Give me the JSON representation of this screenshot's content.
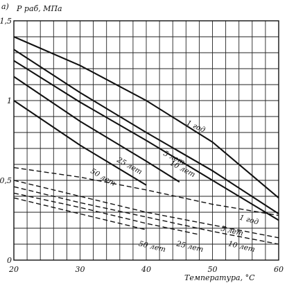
{
  "panel_label": "а)",
  "chart_data": {
    "type": "line",
    "ylabel": "P раб, МПа",
    "xlabel": "Температура, °C",
    "xlim": [
      20,
      60
    ],
    "ylim": [
      0,
      1.5
    ],
    "x_ticks": [
      20,
      30,
      40,
      50,
      60
    ],
    "y_ticks": [
      {
        "value": 0,
        "label": "0"
      },
      {
        "value": 0.5,
        "label": "0,5"
      },
      {
        "value": 1,
        "label": "1"
      },
      {
        "value": 1.5,
        "label": "1,5"
      }
    ],
    "grid": true,
    "series": [
      {
        "name": "1 год",
        "style": "solid",
        "points": [
          [
            20,
            1.4
          ],
          [
            30,
            1.22
          ],
          [
            40,
            1.0
          ],
          [
            50,
            0.74
          ],
          [
            60,
            0.39
          ]
        ]
      },
      {
        "name": "5 лет",
        "style": "solid",
        "points": [
          [
            20,
            1.32
          ],
          [
            30,
            1.05
          ],
          [
            40,
            0.8
          ],
          [
            50,
            0.56
          ],
          [
            60,
            0.29
          ]
        ]
      },
      {
        "name": "10 лет",
        "style": "solid",
        "points": [
          [
            20,
            1.25
          ],
          [
            30,
            0.99
          ],
          [
            40,
            0.75
          ],
          [
            50,
            0.5
          ],
          [
            60,
            0.25
          ]
        ]
      },
      {
        "name": "25 лет",
        "style": "solid",
        "points": [
          [
            20,
            1.15
          ],
          [
            30,
            0.87
          ],
          [
            40,
            0.62
          ],
          [
            45,
            0.49
          ]
        ]
      },
      {
        "name": "50 лет",
        "style": "solid",
        "points": [
          [
            20,
            1.0
          ],
          [
            30,
            0.72
          ],
          [
            40,
            0.47
          ]
        ]
      },
      {
        "name": "1 год",
        "style": "dashed",
        "points": [
          [
            20,
            0.58
          ],
          [
            30,
            0.52
          ],
          [
            40,
            0.44
          ],
          [
            50,
            0.35
          ],
          [
            60,
            0.28
          ]
        ]
      },
      {
        "name": "5 лет",
        "style": "dashed",
        "points": [
          [
            20,
            0.5
          ],
          [
            30,
            0.4
          ],
          [
            40,
            0.3
          ],
          [
            50,
            0.22
          ],
          [
            60,
            0.14
          ]
        ]
      },
      {
        "name": "10 лет",
        "style": "dashed",
        "points": [
          [
            20,
            0.46
          ],
          [
            30,
            0.36
          ],
          [
            40,
            0.27
          ],
          [
            50,
            0.18
          ],
          [
            60,
            0.1
          ]
        ]
      },
      {
        "name": "25 лет",
        "style": "dashed",
        "points": [
          [
            20,
            0.42
          ],
          [
            30,
            0.33
          ],
          [
            40,
            0.23
          ],
          [
            48,
            0.16
          ]
        ]
      },
      {
        "name": "50 лет",
        "style": "dashed",
        "points": [
          [
            20,
            0.39
          ],
          [
            30,
            0.29
          ],
          [
            40,
            0.19
          ]
        ]
      }
    ]
  }
}
